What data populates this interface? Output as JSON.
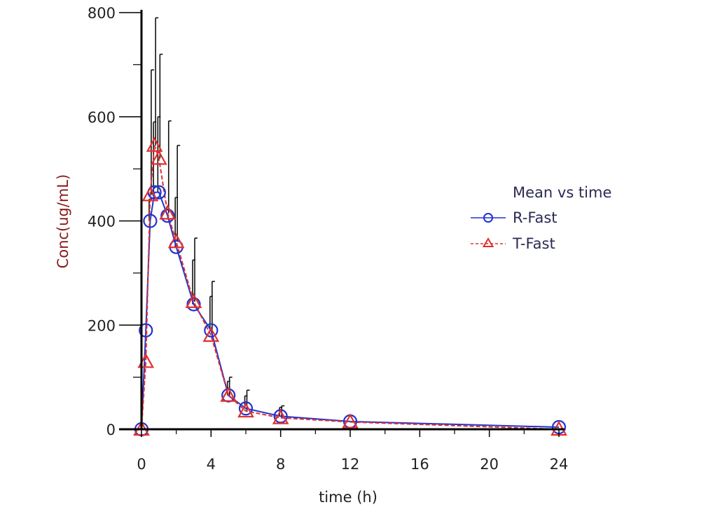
{
  "chart_data": {
    "type": "line",
    "title": "",
    "xlabel": "time (h)",
    "ylabel": "Conc(ug/mL)",
    "xlim": [
      0,
      24
    ],
    "ylim": [
      0,
      800
    ],
    "x_major_ticks": [
      0,
      4,
      8,
      12,
      16,
      20,
      24
    ],
    "x_minor_ticks": [
      2,
      6,
      10,
      14,
      18,
      22
    ],
    "y_major_ticks": [
      0,
      200,
      400,
      600,
      800
    ],
    "y_minor_ticks": [
      100,
      300,
      500,
      700
    ],
    "legend": {
      "title": "Mean vs time",
      "position": "right"
    },
    "series": [
      {
        "name": "R-Fast",
        "color": "#2233cc",
        "marker": "circle",
        "line_style": "solid",
        "x": [
          0,
          0.25,
          0.5,
          0.75,
          1,
          1.5,
          2,
          3,
          4,
          5,
          6,
          8,
          12,
          24
        ],
        "values": [
          0,
          190,
          400,
          455,
          455,
          410,
          350,
          240,
          190,
          65,
          40,
          25,
          15,
          4
        ],
        "error_upper": [
          null,
          null,
          442,
          590,
          600,
          null,
          445,
          325,
          255,
          92,
          64,
          42,
          null,
          null
        ]
      },
      {
        "name": "T-Fast",
        "color": "#e03030",
        "marker": "triangle",
        "line_style": "dashed",
        "x": [
          0,
          0.25,
          0.5,
          0.75,
          1,
          1.5,
          2,
          3,
          4,
          5,
          6,
          8,
          12,
          24
        ],
        "values": [
          0,
          130,
          450,
          545,
          520,
          415,
          360,
          245,
          180,
          65,
          35,
          22,
          14,
          0
        ],
        "error_upper": [
          null,
          null,
          690,
          790,
          720,
          592,
          545,
          367,
          284,
          100,
          75,
          45,
          null,
          null
        ]
      }
    ]
  }
}
